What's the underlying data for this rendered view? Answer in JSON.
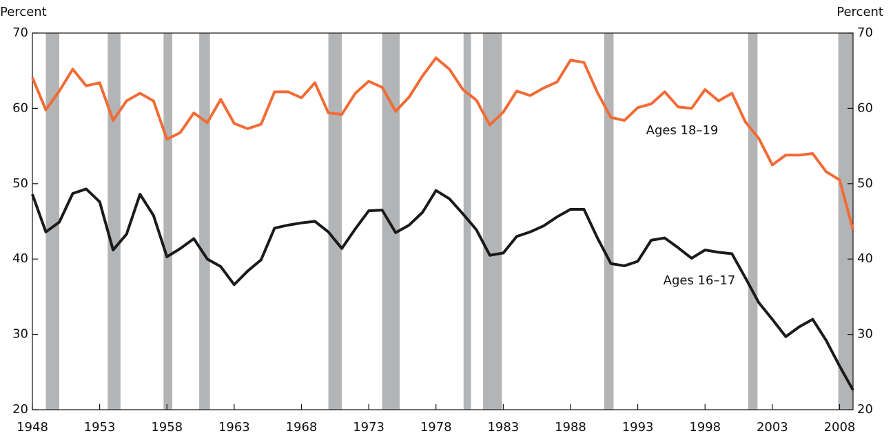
{
  "chart_data": {
    "type": "line",
    "y_label": "Percent",
    "y2_label": "Percent",
    "x": [
      1948,
      1949,
      1950,
      1951,
      1952,
      1953,
      1954,
      1955,
      1956,
      1957,
      1958,
      1959,
      1960,
      1961,
      1962,
      1963,
      1964,
      1965,
      1966,
      1967,
      1968,
      1969,
      1970,
      1971,
      1972,
      1973,
      1974,
      1975,
      1976,
      1977,
      1978,
      1979,
      1980,
      1981,
      1982,
      1983,
      1984,
      1985,
      1986,
      1987,
      1988,
      1989,
      1990,
      1991,
      1992,
      1993,
      1994,
      1995,
      1996,
      1997,
      1998,
      1999,
      2000,
      2001,
      2002,
      2003,
      2004,
      2005,
      2006,
      2007,
      2008,
      2009
    ],
    "series": [
      {
        "name": "Ages 18–19",
        "color": "#f26b35",
        "values": [
          64.1,
          59.8,
          62.3,
          65.2,
          63.0,
          63.4,
          58.4,
          61.0,
          62.0,
          61.0,
          55.9,
          56.8,
          59.4,
          58.1,
          61.2,
          58.0,
          57.3,
          57.9,
          62.2,
          62.2,
          61.4,
          63.4,
          59.4,
          59.2,
          62.0,
          63.6,
          62.8,
          59.6,
          61.5,
          64.3,
          66.7,
          65.2,
          62.5,
          61.1,
          57.8,
          59.5,
          62.3,
          61.7,
          62.7,
          63.5,
          66.4,
          66.1,
          62.1,
          58.8,
          58.4,
          60.1,
          60.6,
          62.2,
          60.2,
          60.0,
          62.5,
          61.0,
          62.0,
          58.2,
          56.0,
          52.5,
          53.8,
          53.8,
          54.0,
          51.6,
          50.5,
          43.9
        ]
      },
      {
        "name": "Ages 16–17",
        "color": "#1a1a1a",
        "values": [
          48.6,
          43.6,
          44.9,
          48.7,
          49.3,
          47.6,
          41.2,
          43.3,
          48.6,
          45.8,
          40.3,
          41.4,
          42.7,
          40.0,
          39.0,
          36.6,
          38.4,
          39.9,
          44.1,
          44.5,
          44.8,
          45.0,
          43.6,
          41.4,
          44.0,
          46.4,
          46.5,
          43.5,
          44.5,
          46.2,
          49.1,
          48.0,
          46.0,
          43.9,
          40.5,
          40.8,
          43.0,
          43.6,
          44.4,
          45.6,
          46.6,
          46.6,
          42.8,
          39.4,
          39.1,
          39.7,
          42.5,
          42.8,
          41.5,
          40.1,
          41.2,
          40.9,
          40.7,
          37.5,
          34.2,
          32.0,
          29.7,
          31.0,
          32.0,
          29.2,
          25.8,
          22.6
        ]
      }
    ],
    "recessions": [
      [
        1949.0,
        1950.0
      ],
      [
        1953.6,
        1954.55
      ],
      [
        1957.75,
        1958.4
      ],
      [
        1960.4,
        1961.2
      ],
      [
        1970.0,
        1971.0
      ],
      [
        1974.0,
        1975.3
      ],
      [
        1980.05,
        1980.6
      ],
      [
        1981.5,
        1982.9
      ],
      [
        1990.5,
        1991.2
      ],
      [
        2001.2,
        2001.9
      ],
      [
        2007.9,
        2009.0
      ]
    ],
    "recession_color": "#b3b4b6",
    "xlim": [
      1948,
      2009
    ],
    "xticks": [
      1948,
      1953,
      1958,
      1963,
      1968,
      1973,
      1978,
      1983,
      1988,
      1993,
      1998,
      2003,
      2008
    ],
    "ylim": [
      20,
      70
    ],
    "yticks": [
      20,
      30,
      40,
      50,
      60,
      70
    ],
    "y2lim": [
      20,
      70
    ],
    "y2ticks": [
      20,
      30,
      40,
      50,
      60,
      70
    ]
  }
}
